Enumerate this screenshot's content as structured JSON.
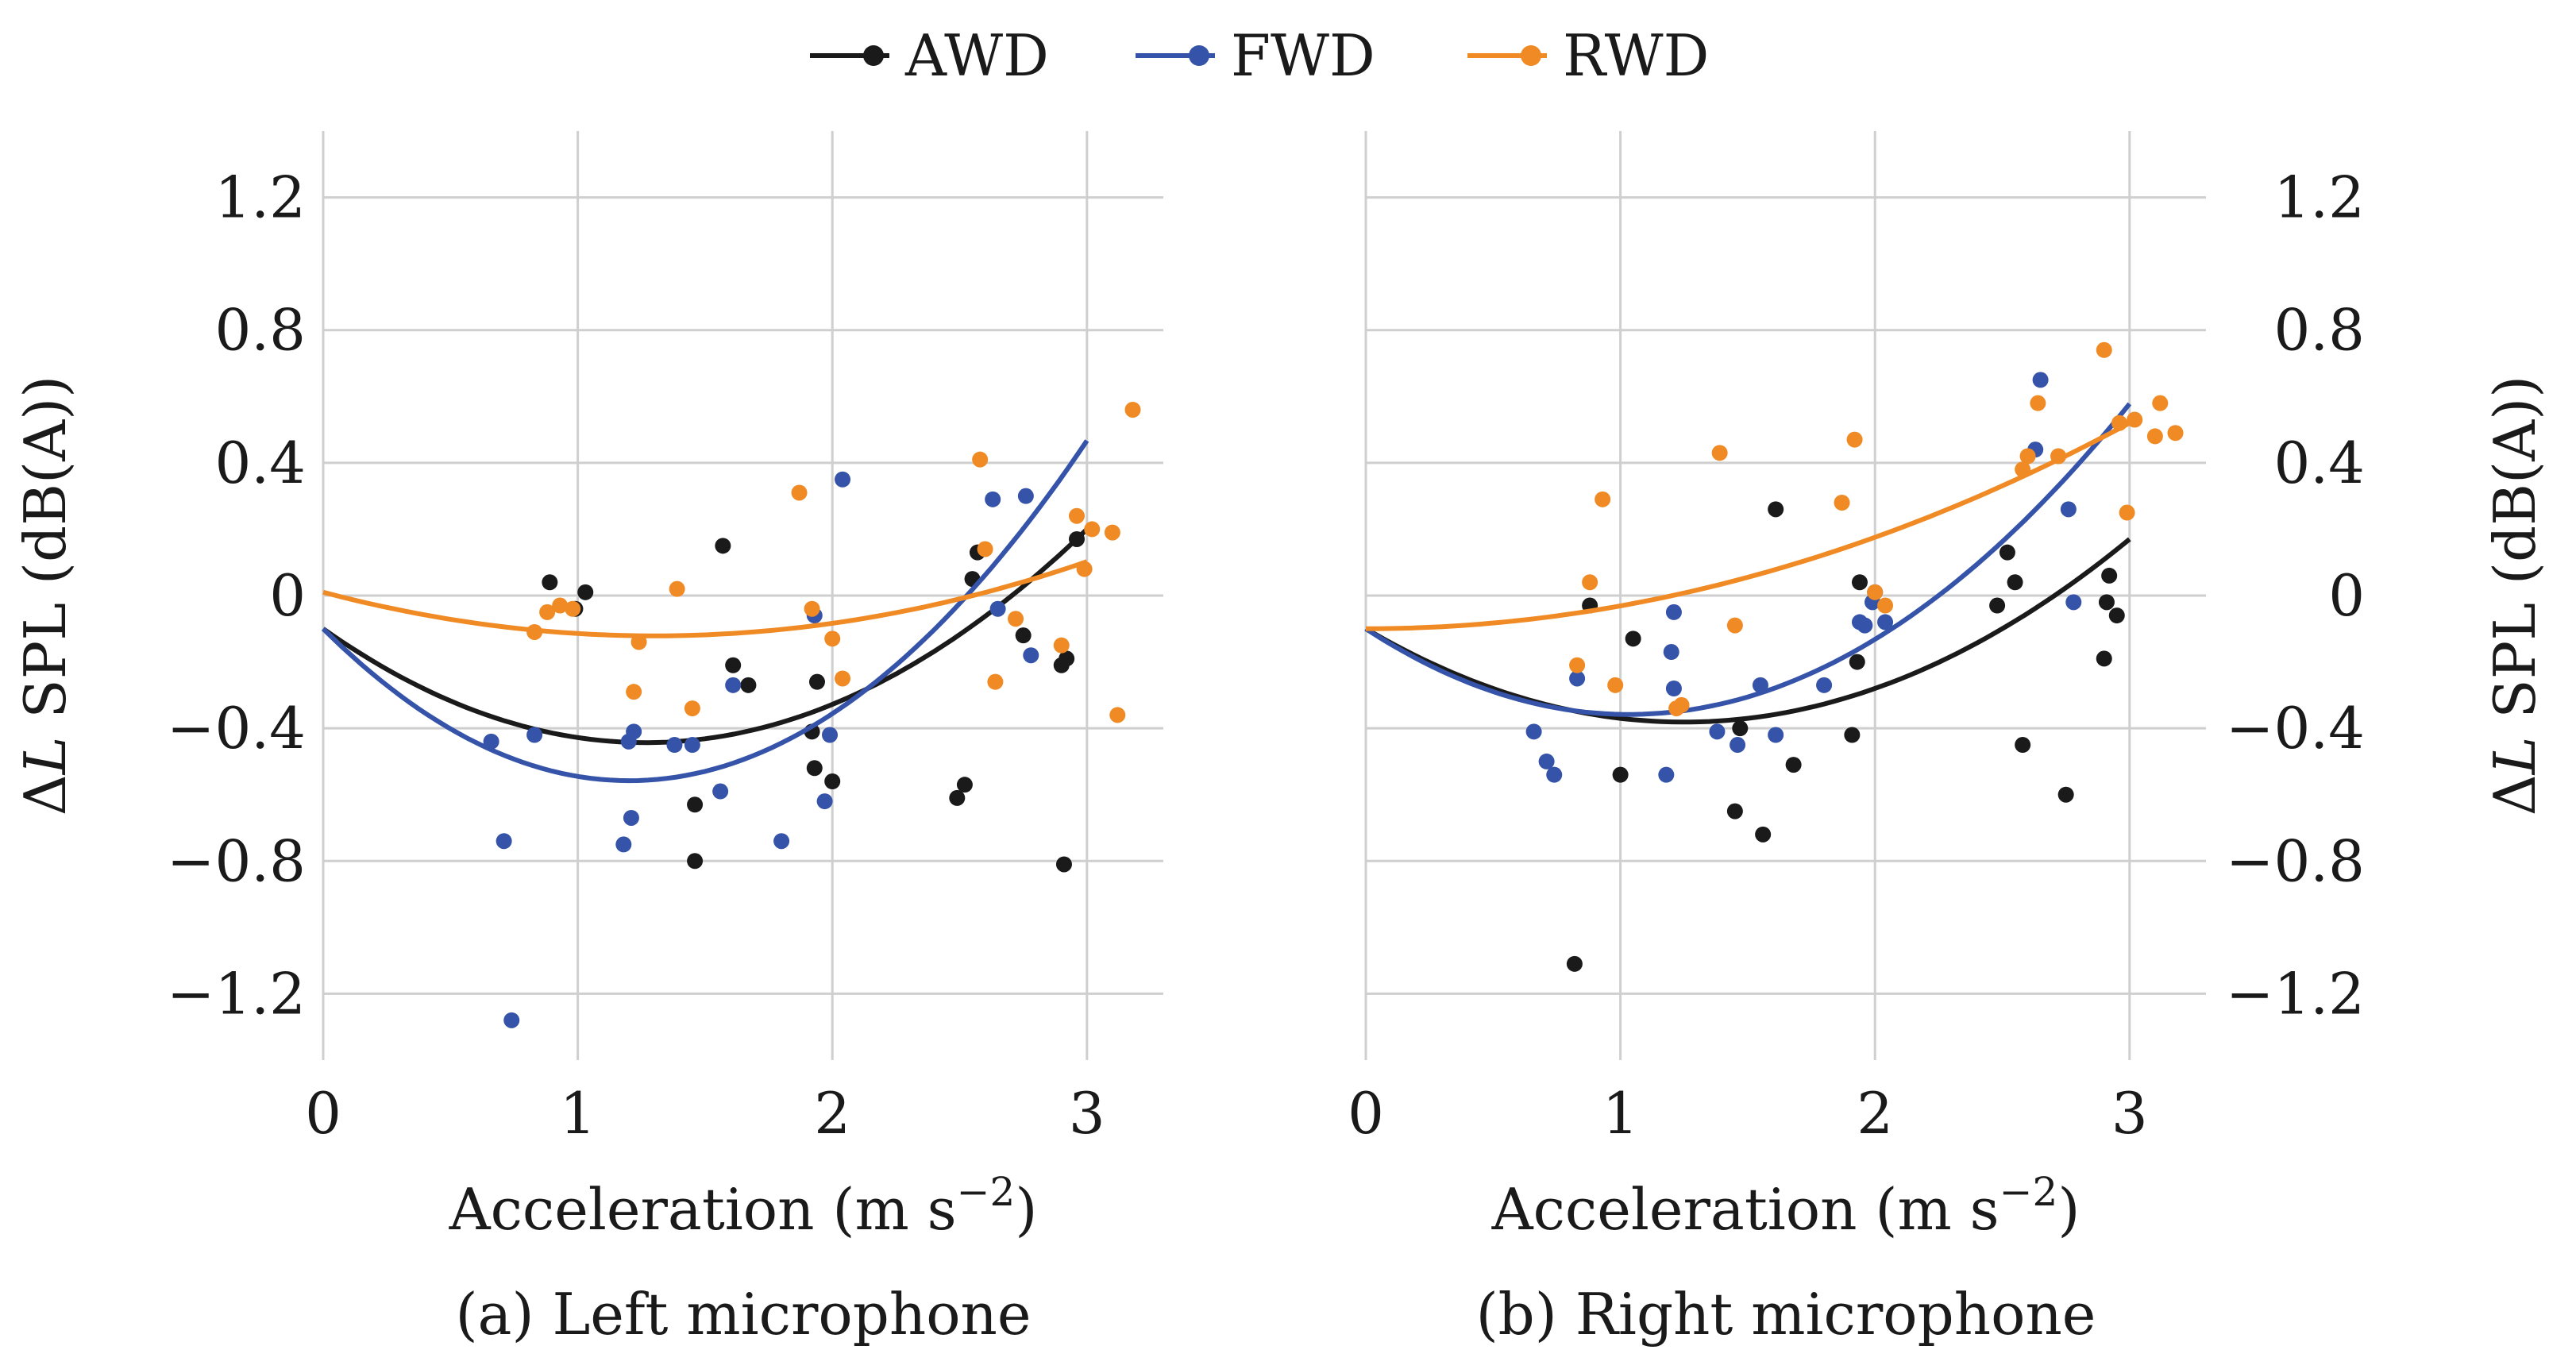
{
  "colors": {
    "AWD": "#1a1a1a",
    "FWD": "#3553a8",
    "RWD": "#f08a24",
    "grid": "#cfcfcf"
  },
  "legend": {
    "items": [
      "AWD",
      "FWD",
      "RWD"
    ],
    "placement": "top-center"
  },
  "chart_data": [
    {
      "type": "scatter",
      "panel": "left",
      "caption": "(a) Left microphone",
      "xlabel": "Acceleration (m s−2)",
      "xlabel_parts": {
        "main": "Acceleration (m s",
        "exp": "−2",
        "end": ")"
      },
      "ylabel": "ΔL SPL (dB(A))",
      "ylabel_parts": {
        "delta": "Δ",
        "var": "L",
        "rest": " SPL (dB(A))"
      },
      "xlim": [
        0,
        3.3
      ],
      "ylim": [
        -1.4,
        1.4
      ],
      "xticks": [
        0,
        1,
        2,
        3
      ],
      "xtick_labels": [
        "0",
        "1",
        "2",
        "3"
      ],
      "yticks": [
        -1.2,
        -0.8,
        -0.4,
        0,
        0.4,
        0.8,
        1.2
      ],
      "ytick_labels": [
        "−1.2",
        "−0.8",
        "−0.4",
        "0",
        "0.4",
        "0.8",
        "1.2"
      ],
      "yaxis_side": "left",
      "series": [
        {
          "name": "AWD",
          "points": [
            [
              0.89,
              0.04
            ],
            [
              0.99,
              -0.04
            ],
            [
              1.03,
              0.01
            ],
            [
              1.46,
              -0.63
            ],
            [
              1.46,
              -0.8
            ],
            [
              1.57,
              0.15
            ],
            [
              1.61,
              -0.21
            ],
            [
              1.67,
              -0.27
            ],
            [
              1.92,
              -0.41
            ],
            [
              1.93,
              -0.52
            ],
            [
              1.94,
              -0.26
            ],
            [
              2.0,
              -0.56
            ],
            [
              2.49,
              -0.61
            ],
            [
              2.52,
              -0.57
            ],
            [
              2.55,
              0.05
            ],
            [
              2.57,
              0.13
            ],
            [
              2.75,
              -0.12
            ],
            [
              2.9,
              -0.21
            ],
            [
              2.91,
              -0.81
            ],
            [
              2.92,
              -0.19
            ],
            [
              2.96,
              0.17
            ]
          ],
          "fit": [
            -0.1,
            -0.542,
            0.214
          ]
        },
        {
          "name": "FWD",
          "points": [
            [
              0.66,
              -0.44
            ],
            [
              0.71,
              -0.74
            ],
            [
              0.74,
              -1.28
            ],
            [
              0.83,
              -0.42
            ],
            [
              1.18,
              -0.75
            ],
            [
              1.2,
              -0.44
            ],
            [
              1.21,
              -0.67
            ],
            [
              1.22,
              -0.41
            ],
            [
              1.38,
              -0.45
            ],
            [
              1.45,
              -0.45
            ],
            [
              1.56,
              -0.59
            ],
            [
              1.61,
              -0.27
            ],
            [
              1.8,
              -0.74
            ],
            [
              1.93,
              -0.06
            ],
            [
              1.97,
              -0.62
            ],
            [
              1.99,
              -0.42
            ],
            [
              2.04,
              0.35
            ],
            [
              2.63,
              0.29
            ],
            [
              2.65,
              -0.04
            ],
            [
              2.76,
              0.3
            ],
            [
              2.78,
              -0.18
            ]
          ],
          "fit": [
            -0.1,
            -0.762,
            0.317
          ]
        },
        {
          "name": "RWD",
          "points": [
            [
              0.83,
              -0.11
            ],
            [
              0.88,
              -0.05
            ],
            [
              0.93,
              -0.03
            ],
            [
              0.98,
              -0.04
            ],
            [
              1.22,
              -0.29
            ],
            [
              1.24,
              -0.14
            ],
            [
              1.39,
              0.02
            ],
            [
              1.45,
              -0.34
            ],
            [
              1.87,
              0.31
            ],
            [
              1.92,
              -0.04
            ],
            [
              2.0,
              -0.13
            ],
            [
              2.04,
              -0.25
            ],
            [
              2.58,
              0.41
            ],
            [
              2.6,
              0.14
            ],
            [
              2.64,
              -0.26
            ],
            [
              2.72,
              -0.07
            ],
            [
              2.9,
              -0.15
            ],
            [
              2.96,
              0.24
            ],
            [
              2.99,
              0.08
            ],
            [
              3.02,
              0.2
            ],
            [
              3.1,
              0.19
            ],
            [
              3.12,
              -0.36
            ],
            [
              3.18,
              0.56
            ]
          ],
          "fit": [
            0.01,
            -0.202,
            0.0776
          ]
        }
      ]
    },
    {
      "type": "scatter",
      "panel": "right",
      "caption": "(b) Right microphone",
      "xlabel": "Acceleration (m s−2)",
      "xlabel_parts": {
        "main": "Acceleration (m s",
        "exp": "−2",
        "end": ")"
      },
      "ylabel": "ΔL SPL (dB(A))",
      "ylabel_parts": {
        "delta": "Δ",
        "var": "L",
        "rest": " SPL (dB(A))"
      },
      "xlim": [
        0,
        3.3
      ],
      "ylim": [
        -1.4,
        1.4
      ],
      "xticks": [
        0,
        1,
        2,
        3
      ],
      "xtick_labels": [
        "0",
        "1",
        "2",
        "3"
      ],
      "yticks": [
        -1.2,
        -0.8,
        -0.4,
        0,
        0.4,
        0.8,
        1.2
      ],
      "ytick_labels": [
        "−1.2",
        "−0.8",
        "−0.4",
        "0",
        "0.4",
        "0.8",
        "1.2"
      ],
      "yaxis_side": "right",
      "series": [
        {
          "name": "AWD",
          "points": [
            [
              0.82,
              -1.11
            ],
            [
              0.88,
              -0.03
            ],
            [
              1.0,
              -0.54
            ],
            [
              1.05,
              -0.13
            ],
            [
              1.45,
              -0.65
            ],
            [
              1.47,
              -0.4
            ],
            [
              1.56,
              -0.72
            ],
            [
              1.61,
              0.26
            ],
            [
              1.68,
              -0.51
            ],
            [
              1.91,
              -0.42
            ],
            [
              1.93,
              -0.2
            ],
            [
              1.94,
              0.04
            ],
            [
              2.0,
              0.01
            ],
            [
              2.48,
              -0.03
            ],
            [
              2.52,
              0.13
            ],
            [
              2.55,
              0.04
            ],
            [
              2.58,
              -0.45
            ],
            [
              2.9,
              -0.19
            ],
            [
              2.91,
              -0.02
            ],
            [
              2.92,
              0.06
            ],
            [
              2.95,
              -0.06
            ],
            [
              2.75,
              -0.6
            ]
          ],
          "fit": [
            -0.1,
            -0.45,
            0.18
          ]
        },
        {
          "name": "FWD",
          "points": [
            [
              0.66,
              -0.41
            ],
            [
              0.71,
              -0.5
            ],
            [
              0.74,
              -0.54
            ],
            [
              0.83,
              -0.25
            ],
            [
              1.18,
              -0.54
            ],
            [
              1.2,
              -0.17
            ],
            [
              1.21,
              -0.05
            ],
            [
              1.21,
              -0.28
            ],
            [
              1.38,
              -0.41
            ],
            [
              1.46,
              -0.45
            ],
            [
              1.55,
              -0.27
            ],
            [
              1.61,
              -0.42
            ],
            [
              1.8,
              -0.27
            ],
            [
              1.94,
              -0.08
            ],
            [
              1.96,
              -0.09
            ],
            [
              1.99,
              -0.02
            ],
            [
              2.04,
              -0.08
            ],
            [
              2.63,
              0.44
            ],
            [
              2.65,
              0.65
            ],
            [
              2.76,
              0.26
            ],
            [
              2.78,
              -0.02
            ]
          ],
          "fit": [
            -0.1,
            -0.5,
            0.242
          ]
        },
        {
          "name": "RWD",
          "points": [
            [
              0.83,
              -0.21
            ],
            [
              0.88,
              0.04
            ],
            [
              0.93,
              0.29
            ],
            [
              0.98,
              -0.27
            ],
            [
              1.22,
              -0.34
            ],
            [
              1.24,
              -0.33
            ],
            [
              1.39,
              0.43
            ],
            [
              1.45,
              -0.09
            ],
            [
              1.87,
              0.28
            ],
            [
              1.92,
              0.47
            ],
            [
              2.0,
              0.01
            ],
            [
              2.04,
              -0.03
            ],
            [
              2.58,
              0.38
            ],
            [
              2.6,
              0.42
            ],
            [
              2.64,
              0.58
            ],
            [
              2.72,
              0.42
            ],
            [
              2.9,
              0.74
            ],
            [
              2.96,
              0.52
            ],
            [
              3.02,
              0.53
            ],
            [
              3.1,
              0.48
            ],
            [
              3.12,
              0.58
            ],
            [
              2.99,
              0.25
            ],
            [
              3.18,
              0.49
            ]
          ],
          "fit": [
            -0.1,
            0.0,
            0.0689
          ]
        }
      ]
    }
  ]
}
